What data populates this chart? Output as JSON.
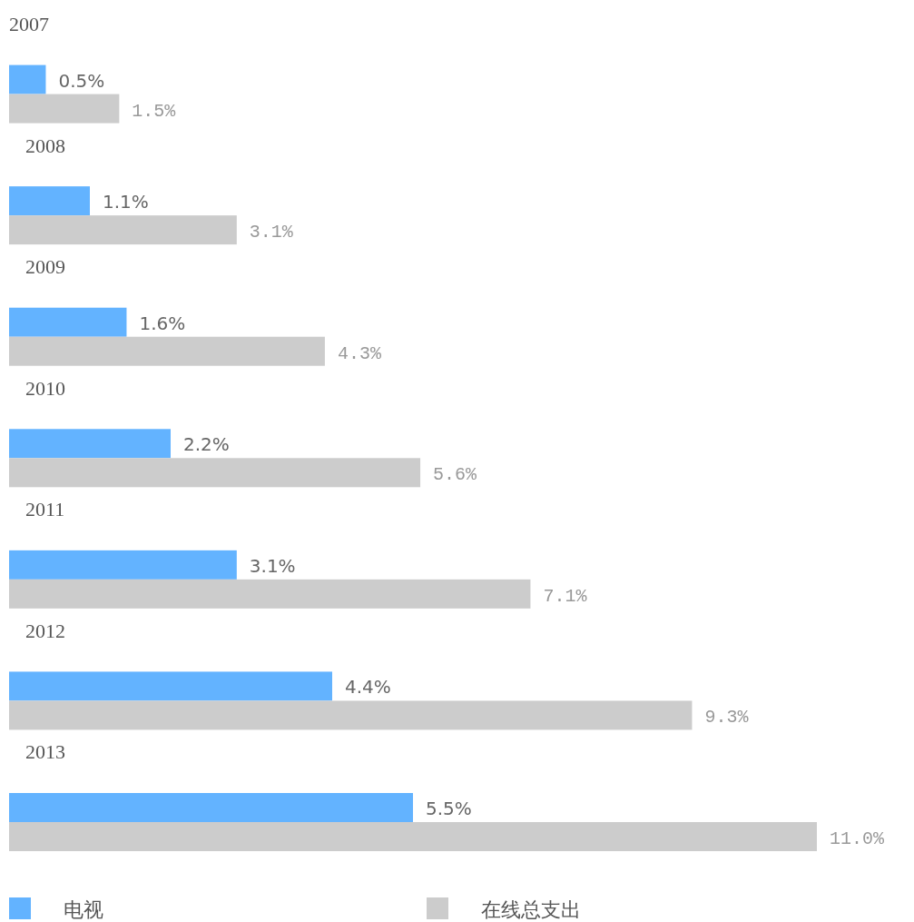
{
  "chart_data": {
    "type": "bar",
    "orientation": "horizontal",
    "legend": "bottom",
    "categories": [
      "2007",
      "2008",
      "2009",
      "2010",
      "2011",
      "2012",
      "2013"
    ],
    "series": [
      {
        "name": "电视",
        "color": "#63b3ff",
        "values": [
          0.5,
          1.1,
          1.6,
          2.2,
          3.1,
          4.4,
          5.5
        ],
        "value_labels": [
          "0.5%",
          "1.1%",
          "1.6%",
          "2.2%",
          "3.1%",
          "4.4%",
          "5.5%"
        ]
      },
      {
        "name": "在线总支出",
        "color": "#cccccc",
        "values": [
          1.5,
          3.1,
          4.3,
          5.6,
          7.1,
          9.3,
          11.0
        ],
        "value_labels": [
          "1.5%",
          "3.1%",
          "4.3%",
          "5.6%",
          "7.1%",
          "9.3%",
          "11.0%"
        ]
      }
    ]
  }
}
